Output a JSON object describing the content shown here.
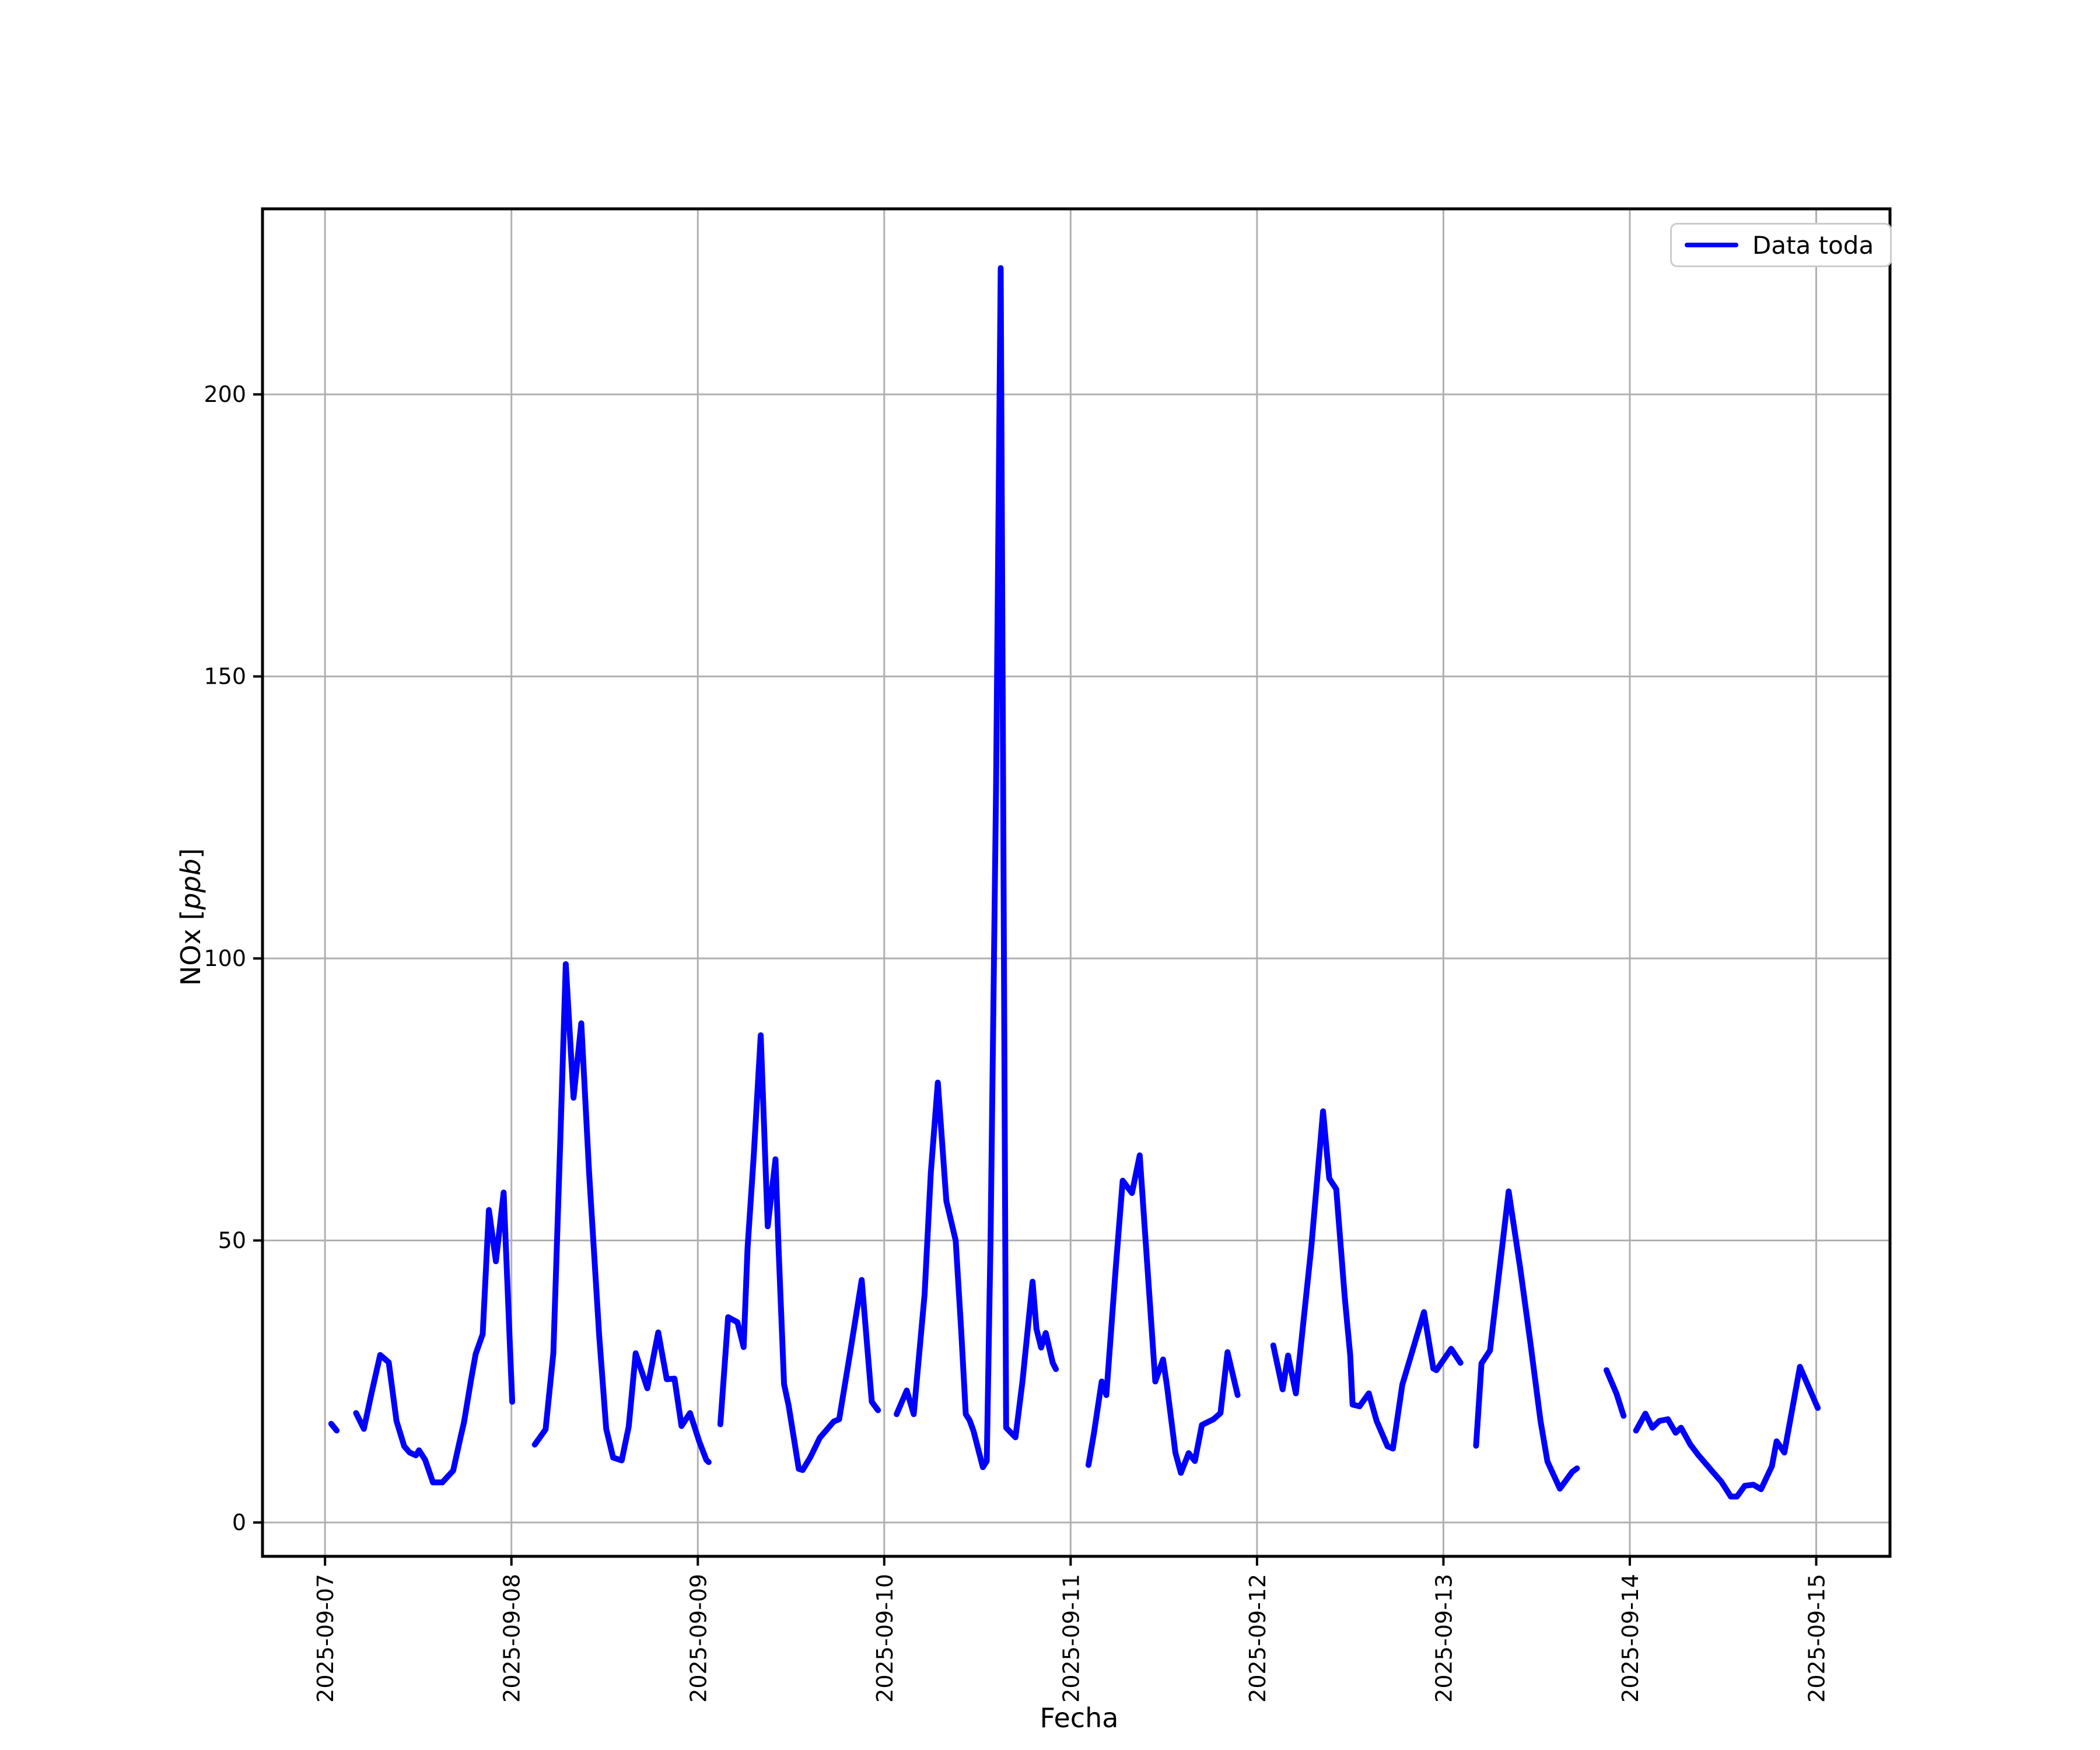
{
  "chart_data": {
    "type": "line",
    "title": "",
    "xlabel": "Fecha",
    "ylabel_prefix": "NOx [",
    "ylabel_italic": "ppb",
    "ylabel_suffix": "]",
    "legend": {
      "label": "Data toda",
      "position": "upper right"
    },
    "line_color": "#0000ff",
    "grid": true,
    "grid_color": "#b0b0b0",
    "x_tick_labels": [
      "2025-09-07",
      "2025-09-08",
      "2025-09-09",
      "2025-09-10",
      "2025-09-11",
      "2025-09-12",
      "2025-09-13",
      "2025-09-14",
      "2025-09-15"
    ],
    "x_tick_hours": [
      0,
      24,
      48,
      72,
      96,
      120,
      144,
      168,
      192
    ],
    "y_ticks": [
      0,
      50,
      100,
      150,
      200
    ],
    "xlim_hours": [
      -8.05,
      201.5
    ],
    "ylim": [
      -6.0,
      232.9
    ],
    "x_unit": "hours since 2025-09-07 00:00",
    "y_unit": "ppb",
    "series": [
      {
        "name": "Data toda",
        "color": "#0000ff",
        "segments": [
          [
            [
              0.8,
              17.5
            ],
            [
              1.5,
              16.3
            ]
          ],
          [
            [
              4.0,
              19.4
            ],
            [
              5.0,
              16.6
            ],
            [
              6.0,
              23.0
            ],
            [
              7.1,
              29.7
            ],
            [
              8.2,
              28.4
            ],
            [
              9.2,
              18.0
            ],
            [
              10.2,
              13.5
            ],
            [
              10.9,
              12.4
            ],
            [
              11.7,
              11.9
            ],
            [
              12.1,
              12.8
            ],
            [
              12.9,
              11.1
            ],
            [
              13.9,
              7.1
            ],
            [
              15.1,
              7.1
            ],
            [
              16.5,
              9.2
            ],
            [
              17.4,
              14.8
            ],
            [
              17.9,
              17.8
            ],
            [
              18.8,
              25.3
            ],
            [
              19.4,
              29.9
            ],
            [
              20.3,
              33.4
            ],
            [
              21.1,
              55.4
            ],
            [
              22.0,
              46.3
            ],
            [
              23.0,
              58.5
            ],
            [
              24.1,
              21.4
            ]
          ],
          [
            [
              27.0,
              13.8
            ],
            [
              28.4,
              16.5
            ],
            [
              29.4,
              30.0
            ],
            [
              30.3,
              68.0
            ],
            [
              31.0,
              99.0
            ],
            [
              32.0,
              75.3
            ],
            [
              33.0,
              88.5
            ],
            [
              34.0,
              62.0
            ],
            [
              35.3,
              33.1
            ],
            [
              36.2,
              16.6
            ],
            [
              37.1,
              11.5
            ],
            [
              38.2,
              11.0
            ],
            [
              39.1,
              17.0
            ],
            [
              40.0,
              30.0
            ],
            [
              41.5,
              23.8
            ],
            [
              42.9,
              33.7
            ],
            [
              44.0,
              25.4
            ],
            [
              45.0,
              25.5
            ],
            [
              45.9,
              17.1
            ],
            [
              47.0,
              19.4
            ],
            [
              48.2,
              14.3
            ],
            [
              49.1,
              11.1
            ],
            [
              49.4,
              10.7
            ]
          ],
          [
            [
              50.9,
              17.4
            ],
            [
              51.9,
              36.4
            ],
            [
              53.1,
              35.5
            ],
            [
              53.9,
              31.1
            ],
            [
              54.4,
              48.6
            ],
            [
              55.2,
              65.0
            ],
            [
              56.1,
              86.4
            ],
            [
              57.0,
              52.5
            ],
            [
              58.0,
              64.4
            ],
            [
              58.4,
              48.6
            ],
            [
              59.1,
              24.5
            ],
            [
              59.7,
              20.7
            ],
            [
              61.0,
              9.5
            ],
            [
              61.5,
              9.3
            ],
            [
              62.5,
              11.6
            ],
            [
              63.1,
              13.3
            ],
            [
              63.7,
              15.0
            ],
            [
              65.5,
              17.9
            ],
            [
              66.2,
              18.3
            ],
            [
              67.6,
              30.0
            ],
            [
              69.1,
              43.0
            ],
            [
              70.4,
              21.4
            ],
            [
              71.2,
              19.9
            ]
          ],
          [
            [
              73.6,
              19.2
            ],
            [
              74.9,
              23.4
            ],
            [
              75.8,
              19.2
            ],
            [
              77.2,
              40.4
            ],
            [
              78.0,
              62.0
            ],
            [
              78.9,
              78.0
            ],
            [
              80.0,
              57.0
            ],
            [
              81.2,
              50.0
            ],
            [
              81.9,
              34.3
            ],
            [
              82.5,
              19.2
            ],
            [
              83.0,
              18.1
            ],
            [
              83.5,
              16.2
            ],
            [
              84.7,
              9.8
            ],
            [
              85.2,
              10.9
            ],
            [
              85.7,
              50.9
            ],
            [
              86.4,
              130.0
            ],
            [
              87.0,
              222.4
            ],
            [
              87.7,
              16.8
            ],
            [
              88.9,
              15.1
            ],
            [
              89.8,
              25.0
            ],
            [
              91.1,
              42.7
            ],
            [
              91.6,
              34.3
            ],
            [
              92.2,
              31.0
            ],
            [
              92.8,
              33.6
            ],
            [
              93.7,
              28.3
            ],
            [
              94.1,
              27.2
            ]
          ],
          [
            [
              98.3,
              10.2
            ],
            [
              99.0,
              15.8
            ],
            [
              100.0,
              25.0
            ],
            [
              100.6,
              22.6
            ],
            [
              101.8,
              45.0
            ],
            [
              102.7,
              60.6
            ],
            [
              103.9,
              58.4
            ],
            [
              104.9,
              65.1
            ],
            [
              106.9,
              25.0
            ],
            [
              107.9,
              28.9
            ],
            [
              108.4,
              24.3
            ],
            [
              109.5,
              12.3
            ],
            [
              110.2,
              8.8
            ],
            [
              111.2,
              12.3
            ],
            [
              112.0,
              10.9
            ],
            [
              112.9,
              17.3
            ],
            [
              114.4,
              18.3
            ],
            [
              115.3,
              19.4
            ],
            [
              116.2,
              30.2
            ],
            [
              117.5,
              22.6
            ]
          ],
          [
            [
              122.1,
              31.4
            ],
            [
              123.3,
              23.6
            ],
            [
              124.0,
              29.6
            ],
            [
              125.0,
              22.9
            ],
            [
              127.0,
              49.0
            ],
            [
              128.5,
              72.9
            ],
            [
              129.3,
              61.0
            ],
            [
              130.2,
              59.1
            ],
            [
              131.3,
              39.9
            ],
            [
              132.0,
              29.6
            ],
            [
              132.3,
              20.9
            ],
            [
              133.2,
              20.6
            ],
            [
              134.4,
              22.9
            ],
            [
              135.4,
              18.0
            ],
            [
              136.8,
              13.5
            ],
            [
              137.5,
              13.1
            ],
            [
              138.7,
              24.4
            ],
            [
              141.5,
              37.3
            ],
            [
              142.7,
              27.3
            ],
            [
              143.1,
              27.0
            ],
            [
              145.0,
              30.8
            ],
            [
              146.2,
              28.3
            ]
          ],
          [
            [
              148.2,
              13.6
            ],
            [
              148.9,
              28.2
            ],
            [
              150.0,
              30.5
            ],
            [
              152.4,
              58.7
            ],
            [
              153.9,
              45.0
            ],
            [
              155.2,
              31.8
            ],
            [
              156.5,
              18.0
            ],
            [
              157.4,
              10.8
            ],
            [
              159.0,
              6.0
            ],
            [
              160.6,
              9.0
            ],
            [
              161.2,
              9.6
            ]
          ],
          [
            [
              165.0,
              27.0
            ],
            [
              166.3,
              22.8
            ],
            [
              167.2,
              18.9
            ]
          ],
          [
            [
              168.8,
              16.3
            ],
            [
              170.0,
              19.3
            ],
            [
              170.9,
              16.8
            ],
            [
              171.8,
              18.0
            ],
            [
              172.9,
              18.3
            ],
            [
              173.9,
              15.9
            ],
            [
              174.6,
              16.8
            ],
            [
              175.8,
              13.8
            ],
            [
              176.8,
              12.0
            ],
            [
              178.6,
              9.1
            ],
            [
              179.8,
              7.2
            ],
            [
              181.0,
              4.6
            ],
            [
              181.8,
              4.6
            ],
            [
              182.8,
              6.5
            ],
            [
              183.9,
              6.7
            ],
            [
              184.9,
              5.9
            ],
            [
              186.3,
              10.0
            ],
            [
              186.9,
              14.4
            ],
            [
              187.9,
              12.4
            ],
            [
              189.9,
              27.6
            ],
            [
              192.2,
              20.3
            ]
          ]
        ]
      }
    ]
  }
}
